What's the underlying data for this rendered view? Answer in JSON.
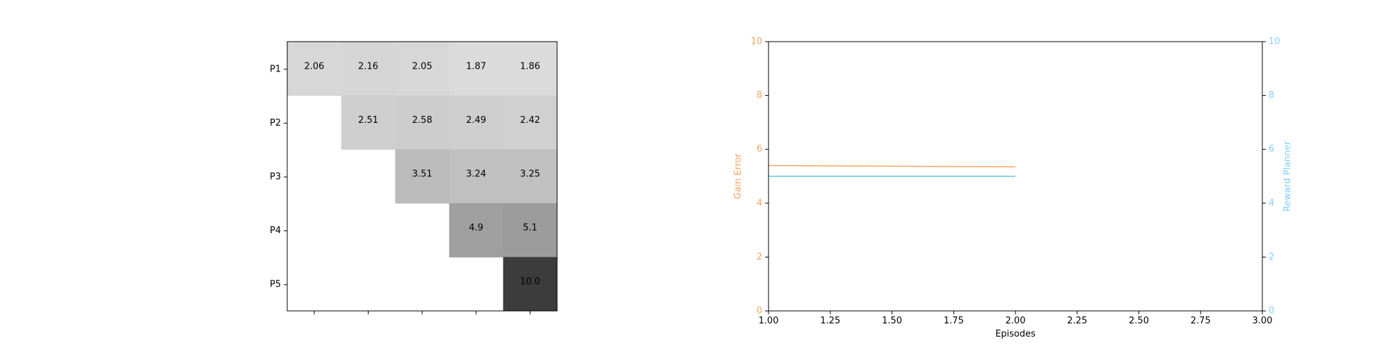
{
  "chart_data": [
    {
      "type": "heatmap",
      "rows": [
        "P1",
        "P2",
        "P3",
        "P4",
        "P5"
      ],
      "columns_count": 5,
      "x_tick_labels": [
        "",
        "",
        "",
        "",
        ""
      ],
      "values": [
        [
          2.06,
          2.16,
          2.05,
          1.87,
          1.86
        ],
        [
          null,
          2.51,
          2.58,
          2.49,
          2.42
        ],
        [
          null,
          null,
          3.51,
          3.24,
          3.25
        ],
        [
          null,
          null,
          null,
          4.9,
          5.1
        ],
        [
          null,
          null,
          null,
          null,
          10.0
        ]
      ],
      "value_labels": [
        [
          "2.06",
          "2.16",
          "2.05",
          "1.87",
          "1.86"
        ],
        [
          "",
          "2.51",
          "2.58",
          "2.49",
          "2.42"
        ],
        [
          "",
          "",
          "3.51",
          "3.24",
          "3.25"
        ],
        [
          "",
          "",
          "",
          "4.9",
          "5.1"
        ],
        [
          "",
          "",
          "",
          "",
          "10.0"
        ]
      ],
      "color_range": [
        0,
        10
      ],
      "colormap": "Greys"
    },
    {
      "type": "line",
      "xlabel": "Episodes",
      "xlim": [
        1.0,
        3.0
      ],
      "x_ticks": [
        "1.00",
        "1.25",
        "1.50",
        "1.75",
        "2.00",
        "2.25",
        "2.50",
        "2.75",
        "3.00"
      ],
      "x_tick_values": [
        1.0,
        1.25,
        1.5,
        1.75,
        2.0,
        2.25,
        2.5,
        2.75,
        3.0
      ],
      "y_left": {
        "label": "Gain Error",
        "lim": [
          0,
          10
        ],
        "ticks": [
          "0",
          "2",
          "4",
          "6",
          "8",
          "10"
        ],
        "tick_values": [
          0,
          2,
          4,
          6,
          8,
          10
        ],
        "color": "#f4a460"
      },
      "y_right": {
        "label": "Reward Planner",
        "lim": [
          0,
          10
        ],
        "ticks": [
          "0",
          "2",
          "4",
          "6",
          "8",
          "10"
        ],
        "tick_values": [
          0,
          2,
          4,
          6,
          8,
          10
        ],
        "color": "#87cefa"
      },
      "series": [
        {
          "axis": "left",
          "color": "#f4a460",
          "x": [
            1.0,
            2.0
          ],
          "y": [
            5.4,
            5.35
          ]
        },
        {
          "axis": "right",
          "color": "#5bc8e0",
          "x": [
            1.0,
            2.0
          ],
          "y": [
            5.0,
            5.0
          ]
        }
      ]
    }
  ]
}
